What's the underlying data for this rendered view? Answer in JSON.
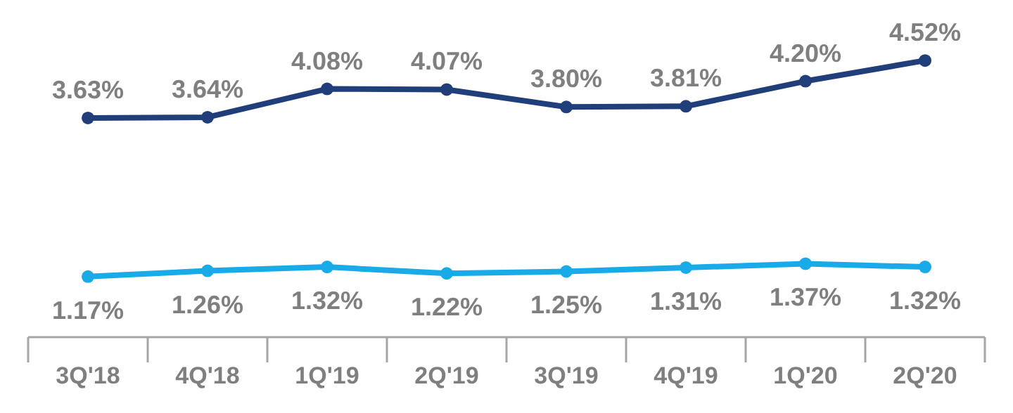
{
  "chart_data": {
    "type": "line",
    "categories": [
      "3Q'18",
      "4Q'18",
      "1Q'19",
      "2Q'19",
      "3Q'19",
      "4Q'19",
      "1Q'20",
      "2Q'20"
    ],
    "series": [
      {
        "color": "#1f3e7a",
        "values": [
          3.63,
          3.64,
          4.08,
          4.07,
          3.8,
          3.81,
          4.2,
          4.52
        ],
        "value_labels": [
          "3.63%",
          "3.64%",
          "4.08%",
          "4.07%",
          "3.80%",
          "3.81%",
          "4.20%",
          "4.52%"
        ]
      },
      {
        "color": "#19aae8",
        "values": [
          1.17,
          1.26,
          1.32,
          1.22,
          1.25,
          1.31,
          1.37,
          1.32
        ],
        "value_labels": [
          "1.17%",
          "1.26%",
          "1.32%",
          "1.22%",
          "1.25%",
          "1.31%",
          "1.37%",
          "1.32%"
        ]
      }
    ],
    "marker": "circle",
    "line_style": "solid"
  }
}
